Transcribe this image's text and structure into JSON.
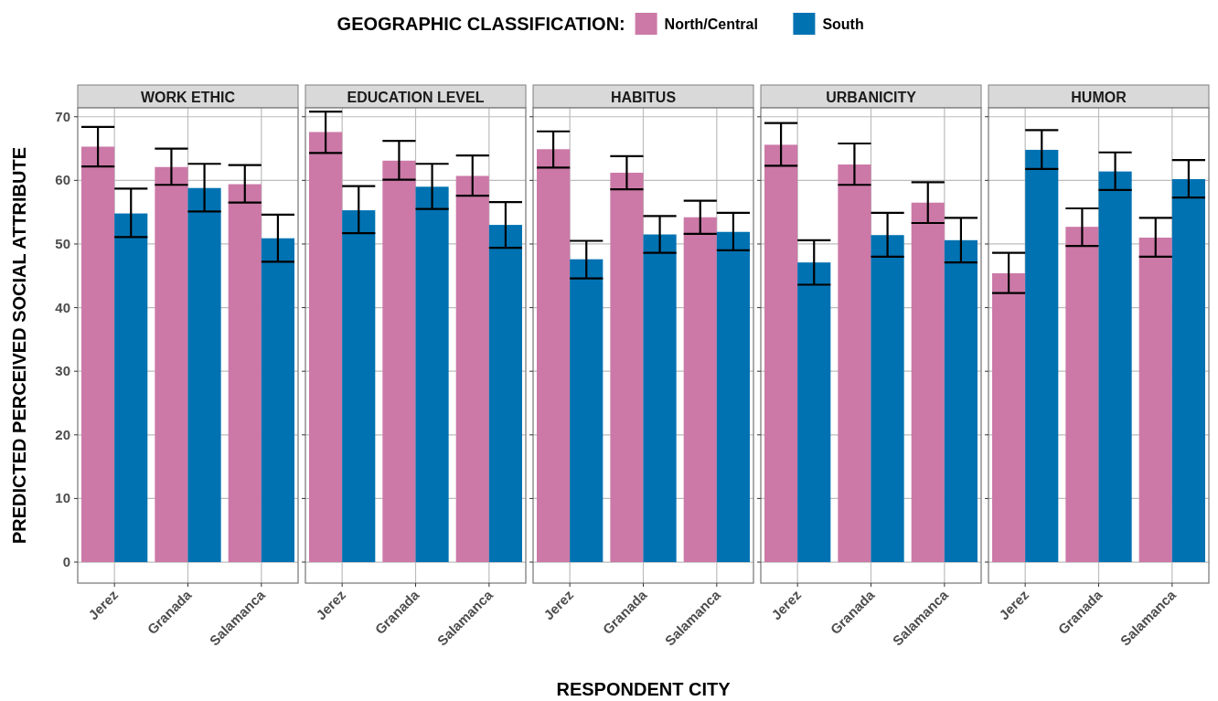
{
  "chart_data": [
    {
      "type": "bar",
      "title": "WORK ETHIC",
      "ylabel": "PREDICTED PERCEIVED SOCIAL ATTRIBUTE",
      "legend_title": "GEOGRAPHIC CLASSIFICATION:",
      "legend": "top",
      "grid": true,
      "categories": [
        "Jerez",
        "Granada",
        "Salamanca"
      ],
      "ylim": [
        -3.3,
        71.4
      ],
      "yticks": [
        0,
        10,
        20,
        30,
        40,
        50,
        60,
        70
      ],
      "series": [
        {
          "name": "North/Central",
          "color": "#cc79a7",
          "values": [
            65.3,
            62.1,
            59.4
          ],
          "errors": [
            [
              62.2,
              68.4
            ],
            [
              59.3,
              65.0
            ],
            [
              56.5,
              62.4
            ]
          ]
        },
        {
          "name": "South",
          "color": "#0072b2",
          "values": [
            54.8,
            58.8,
            50.9
          ],
          "errors": [
            [
              51.1,
              58.7
            ],
            [
              55.1,
              62.6
            ],
            [
              47.2,
              54.6
            ]
          ]
        }
      ]
    },
    {
      "type": "bar",
      "title": "EDUCATION LEVEL",
      "grid": true,
      "tick_labels": "x",
      "categories": [
        "Jerez",
        "Granada",
        "Salamanca"
      ],
      "ylim": [
        -3.3,
        71.4
      ],
      "yticks": [
        0,
        10,
        20,
        30,
        40,
        50,
        60,
        70
      ],
      "series": [
        {
          "color": "#cc79a7",
          "values": [
            67.6,
            63.1,
            60.7
          ],
          "errors": [
            [
              64.3,
              70.8
            ],
            [
              60.1,
              66.2
            ],
            [
              57.6,
              63.9
            ]
          ]
        },
        {
          "color": "#0072b2",
          "values": [
            55.3,
            59.0,
            53.0
          ],
          "errors": [
            [
              51.7,
              59.1
            ],
            [
              55.5,
              62.6
            ],
            [
              49.4,
              56.6
            ]
          ]
        }
      ]
    },
    {
      "type": "bar",
      "title": "HABITUS",
      "xlabel": "RESPONDENT CITY",
      "grid": true,
      "tick_labels": "x",
      "categories": [
        "Jerez",
        "Granada",
        "Salamanca"
      ],
      "ylim": [
        -3.3,
        71.4
      ],
      "yticks": [
        0,
        10,
        20,
        30,
        40,
        50,
        60,
        70
      ],
      "series": [
        {
          "color": "#cc79a7",
          "values": [
            64.9,
            61.2,
            54.2
          ],
          "errors": [
            [
              62.0,
              67.7
            ],
            [
              58.6,
              63.8
            ],
            [
              51.6,
              56.8
            ]
          ]
        },
        {
          "color": "#0072b2",
          "values": [
            47.6,
            51.5,
            51.9
          ],
          "errors": [
            [
              44.6,
              50.5
            ],
            [
              48.6,
              54.4
            ],
            [
              49.0,
              54.9
            ]
          ]
        }
      ]
    },
    {
      "type": "bar",
      "title": "URBANICITY",
      "grid": true,
      "tick_labels": "x",
      "categories": [
        "Jerez",
        "Granada",
        "Salamanca"
      ],
      "ylim": [
        -3.3,
        71.4
      ],
      "yticks": [
        0,
        10,
        20,
        30,
        40,
        50,
        60,
        70
      ],
      "series": [
        {
          "color": "#cc79a7",
          "values": [
            65.6,
            62.5,
            56.5
          ],
          "errors": [
            [
              62.3,
              69.0
            ],
            [
              59.3,
              65.8
            ],
            [
              53.3,
              59.7
            ]
          ]
        },
        {
          "color": "#0072b2",
          "values": [
            47.1,
            51.4,
            50.6
          ],
          "errors": [
            [
              43.6,
              50.6
            ],
            [
              48.0,
              54.9
            ],
            [
              47.1,
              54.1
            ]
          ]
        }
      ]
    },
    {
      "type": "bar",
      "title": "HUMOR",
      "grid": true,
      "tick_labels": "x",
      "categories": [
        "Jerez",
        "Granada",
        "Salamanca"
      ],
      "ylim": [
        -3.3,
        71.4
      ],
      "yticks": [
        0,
        10,
        20,
        30,
        40,
        50,
        60,
        70
      ],
      "series": [
        {
          "color": "#cc79a7",
          "values": [
            45.4,
            52.7,
            51.0
          ],
          "errors": [
            [
              42.3,
              48.6
            ],
            [
              49.7,
              55.6
            ],
            [
              48.0,
              54.1
            ]
          ]
        },
        {
          "color": "#0072b2",
          "values": [
            64.8,
            61.4,
            60.2
          ],
          "errors": [
            [
              61.8,
              67.9
            ],
            [
              58.5,
              64.4
            ],
            [
              57.3,
              63.2
            ]
          ]
        }
      ]
    }
  ]
}
